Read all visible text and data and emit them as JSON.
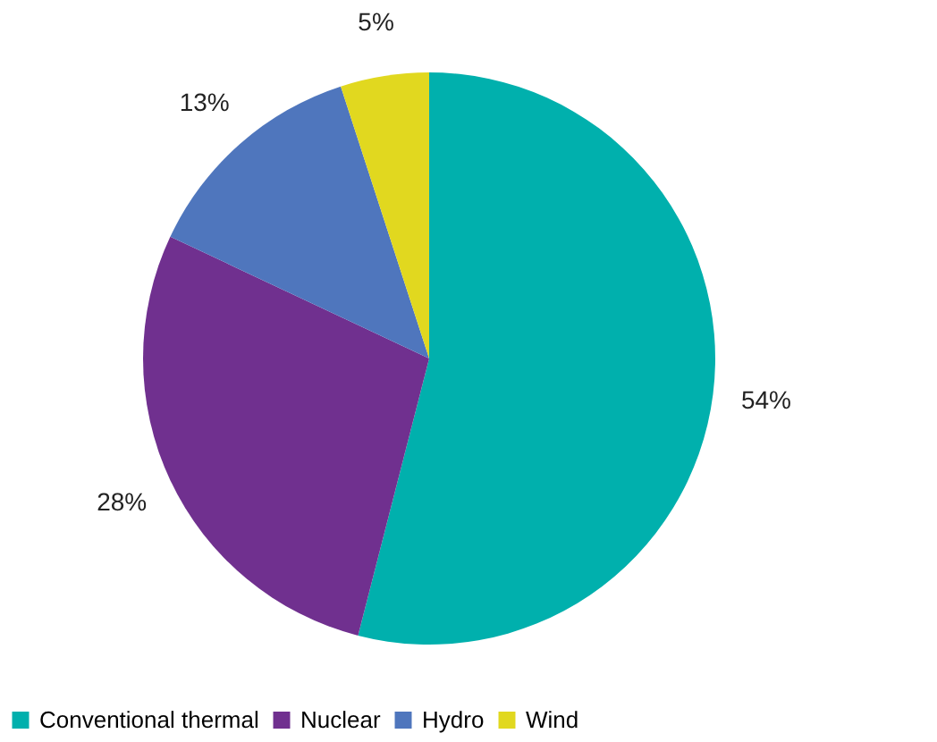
{
  "chart_data": {
    "type": "pie",
    "categories": [
      "Conventional thermal",
      "Nuclear",
      "Hydro",
      "Wind"
    ],
    "values": [
      54,
      28,
      13,
      5
    ],
    "colors": [
      "#00b0ad",
      "#70308f",
      "#4f76bd",
      "#e1d81f"
    ],
    "value_labels": [
      "54%",
      "28%",
      "13%",
      "5%"
    ],
    "legend": "bottom"
  }
}
